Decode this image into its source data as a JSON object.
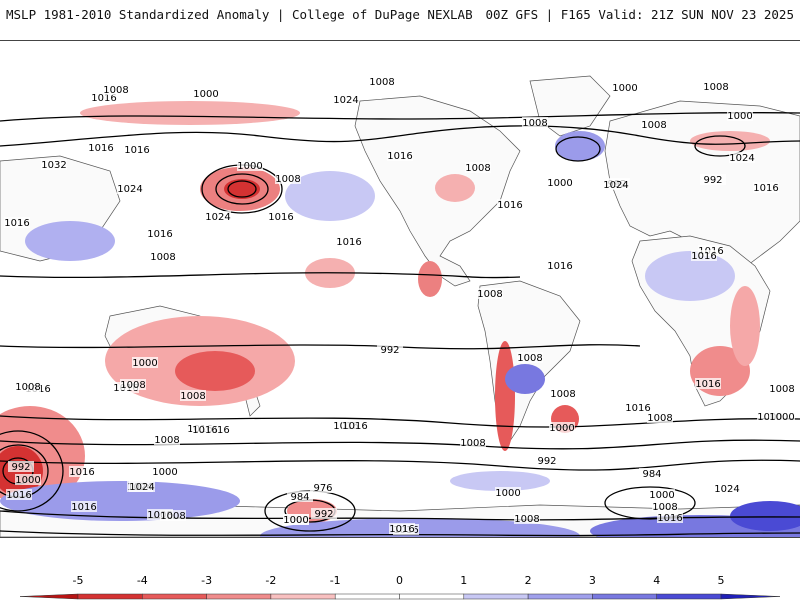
{
  "header": {
    "left_title": "MSLP 1981-2010 Standardized Anomaly | College of DuPage NEXLAB",
    "right_title": "00Z GFS | F165 Valid: 21Z SUN NOV 23 2025"
  },
  "colorbar": {
    "ticks": [
      "-5",
      "-4",
      "-3",
      "-2",
      "-1",
      "0",
      "1",
      "2",
      "3",
      "4",
      "5"
    ],
    "colors": [
      "#b81414",
      "#d43232",
      "#e65a5a",
      "#f08c8c",
      "#f8c0c0",
      "#ffffff",
      "#ffffff",
      "#c8c8f4",
      "#a0a0ec",
      "#7878e0",
      "#4a4ad4",
      "#2020b8"
    ]
  },
  "map": {
    "land_color": "#fafafa",
    "positive_anomaly_color": "#f08c8c",
    "negative_anomaly_color": "#9b9bea",
    "isobar_labels": [
      "1008",
      "1016",
      "1000",
      "1008",
      "1024",
      "1016",
      "1016",
      "1032",
      "1024",
      "1000",
      "1008",
      "1016",
      "1016",
      "1024",
      "1016",
      "1016",
      "1008",
      "1016",
      "1008",
      "1008",
      "1016",
      "1008",
      "1008",
      "1016",
      "1000",
      "992",
      "1008",
      "1000",
      "992",
      "1016",
      "1024",
      "1008",
      "1000",
      "1016",
      "1008",
      "992",
      "1000",
      "1008",
      "976",
      "984",
      "1000",
      "992",
      "1016",
      "1016",
      "1008",
      "1016",
      "1008",
      "992",
      "1000",
      "1016",
      "1024",
      "1008",
      "1016",
      "1008",
      "1000",
      "1000",
      "1016",
      "1016",
      "1016",
      "1024",
      "1016",
      "1016",
      "1000",
      "1024",
      "1008",
      "1016",
      "1016",
      "1008",
      "1016",
      "1000",
      "992",
      "984",
      "1000",
      "1008",
      "1016",
      "1024",
      "1008",
      "1000",
      "1008",
      "1016",
      "1008",
      "1016",
      "1000"
    ]
  }
}
